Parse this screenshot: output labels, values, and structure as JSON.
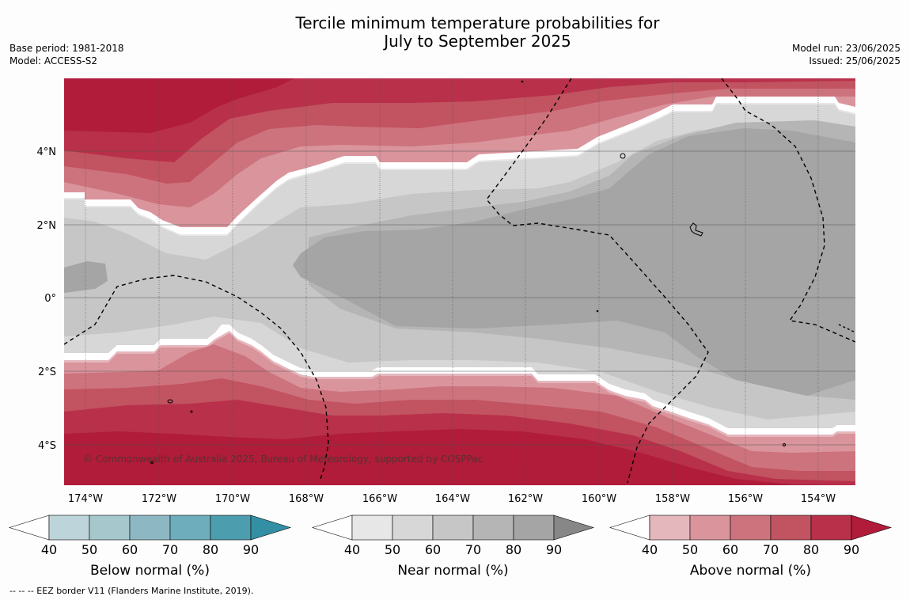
{
  "title_line1": "Tercile minimum temperature probabilities for",
  "title_line2": "July to September 2025",
  "meta_left": {
    "base_period": "Base period: 1981-2018",
    "model": "Model: ACCESS-S2"
  },
  "meta_right": {
    "model_run": "Model run: 23/06/2025",
    "issued": "Issued: 25/06/2025"
  },
  "map": {
    "lon_labels": [
      "174°W",
      "172°W",
      "170°W",
      "168°W",
      "166°W",
      "164°W",
      "162°W",
      "160°W",
      "158°W",
      "156°W",
      "154°W"
    ],
    "lat_labels": [
      "4°N",
      "2°N",
      "0°",
      "2°S",
      "4°S"
    ],
    "copyright": "© Commonwealth of Australia 2025, Bureau of Meteorology, supported by COSPPac"
  },
  "colorbars": [
    {
      "title": "Below normal (%)",
      "ticks": [
        "40",
        "50",
        "60",
        "70",
        "80",
        "90"
      ],
      "colors": [
        "#ffffff",
        "#bcd4da",
        "#a6c8cd",
        "#8db8c3",
        "#6eadbb",
        "#4c9eae",
        "#3390a4"
      ]
    },
    {
      "title": "Near normal (%)",
      "ticks": [
        "40",
        "50",
        "60",
        "70",
        "80",
        "90"
      ],
      "colors": [
        "#ffffff",
        "#e7e7e7",
        "#d7d7d7",
        "#c6c6c6",
        "#b5b5b5",
        "#a5a5a5",
        "#878787"
      ]
    },
    {
      "title": "Above normal (%)",
      "ticks": [
        "40",
        "50",
        "60",
        "70",
        "80",
        "90"
      ],
      "colors": [
        "#ffffff",
        "#e4b7bd",
        "#da949c",
        "#cd737d",
        "#c25360",
        "#b8304a",
        "#b01c3a"
      ]
    }
  ],
  "footnote": "-- -- -- EEZ border V11 (Flanders Marine Institute, 2019)."
}
